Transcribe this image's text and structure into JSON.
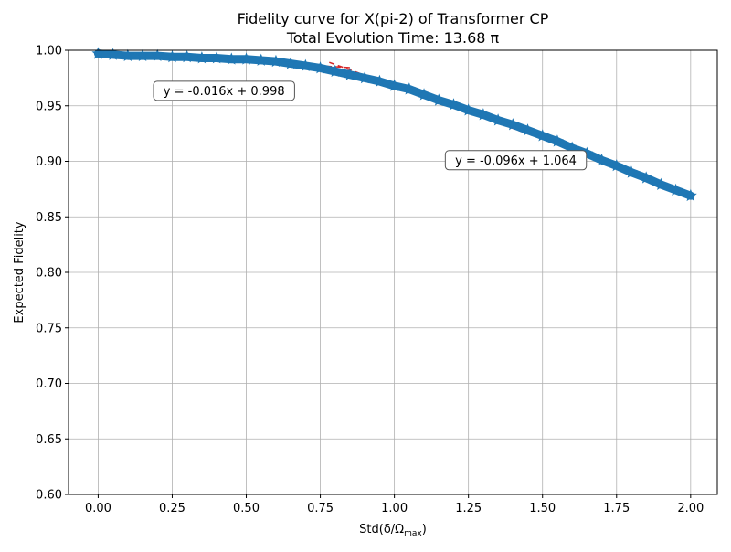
{
  "chart_data": {
    "type": "scatter",
    "title_line1": "Fidelity curve for X(pi-2) of Transformer CP",
    "title_line2": "Total Evolution Time: 13.68 π",
    "xlabel": "Std(δ/Ω",
    "xlabel_sub": "max",
    "xlabel_close": ")",
    "ylabel": "Expected Fidelity",
    "xlim": [
      -0.1,
      2.09
    ],
    "ylim": [
      0.6,
      1.0
    ],
    "grid": true,
    "x_ticks": [
      0.0,
      0.25,
      0.5,
      0.75,
      1.0,
      1.25,
      1.5,
      1.75,
      2.0
    ],
    "x_tick_labels": [
      "0.00",
      "0.25",
      "0.50",
      "0.75",
      "1.00",
      "1.25",
      "1.50",
      "1.75",
      "2.00"
    ],
    "y_ticks": [
      0.6,
      0.65,
      0.7,
      0.75,
      0.8,
      0.85,
      0.9,
      0.95,
      1.0
    ],
    "y_tick_labels": [
      "0.60",
      "0.65",
      "0.70",
      "0.75",
      "0.80",
      "0.85",
      "0.90",
      "0.95",
      "1.00"
    ],
    "series": [
      {
        "color": "#1f77b4",
        "marker": "star",
        "x": [
          0.0,
          0.05,
          0.1,
          0.15,
          0.2,
          0.25,
          0.3,
          0.35,
          0.4,
          0.45,
          0.5,
          0.55,
          0.6,
          0.65,
          0.7,
          0.75,
          0.8,
          0.85,
          0.9,
          0.95,
          1.0,
          1.05,
          1.1,
          1.15,
          1.2,
          1.25,
          1.3,
          1.35,
          1.4,
          1.45,
          1.5,
          1.55,
          1.6,
          1.65,
          1.7,
          1.75,
          1.8,
          1.85,
          1.9,
          1.95,
          2.0
        ],
        "y": [
          0.997,
          0.996,
          0.995,
          0.995,
          0.995,
          0.994,
          0.994,
          0.993,
          0.993,
          0.992,
          0.992,
          0.991,
          0.99,
          0.988,
          0.986,
          0.984,
          0.981,
          0.978,
          0.975,
          0.972,
          0.968,
          0.965,
          0.96,
          0.955,
          0.951,
          0.946,
          0.942,
          0.937,
          0.933,
          0.928,
          0.923,
          0.918,
          0.912,
          0.907,
          0.901,
          0.896,
          0.89,
          0.885,
          0.879,
          0.874,
          0.869
        ]
      }
    ],
    "fit_lines": [
      {
        "label": "y = -0.016x + 0.998",
        "color": "#d62728",
        "slope": -0.016,
        "intercept": 0.998,
        "x_range": [
          0.0,
          0.85
        ],
        "label_at": [
          0.425,
          0.9635
        ]
      },
      {
        "label": "y = -0.096x + 1.064",
        "color": "#d62728",
        "slope": -0.096,
        "intercept": 1.064,
        "x_range": [
          0.78,
          2.0
        ],
        "label_at": [
          1.41,
          0.901
        ]
      }
    ]
  }
}
